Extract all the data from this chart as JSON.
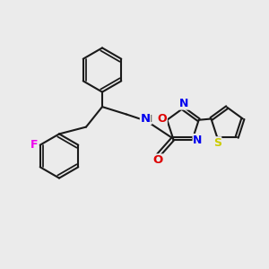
{
  "bg_color": "#ebebeb",
  "bond_color": "#1a1a1a",
  "bond_width": 1.5,
  "atom_colors": {
    "N": "#0000ee",
    "O": "#dd0000",
    "F": "#ee00ee",
    "S": "#cccc00",
    "C": "#1a1a1a",
    "H": "#555555"
  },
  "font_size": 8.5,
  "figsize": [
    3.0,
    3.0
  ],
  "dpi": 100
}
